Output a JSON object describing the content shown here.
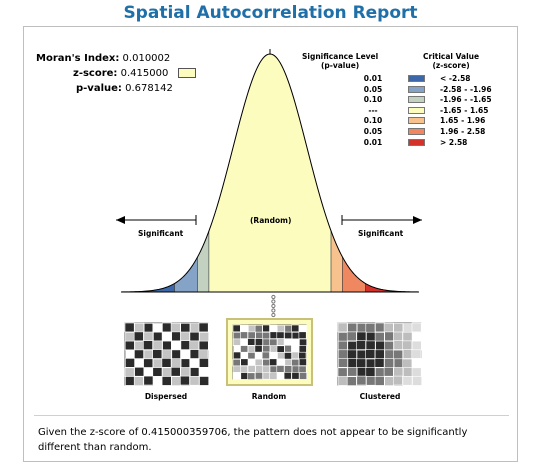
{
  "title": "Spatial Autocorrelation Report",
  "stats": {
    "morans_label": "Moran's Index:",
    "morans_value": "0.010002",
    "zscore_label": "z-score:",
    "zscore_value": "0.415000",
    "pvalue_label": "p-value:",
    "pvalue_value": "0.678142"
  },
  "legend": {
    "sig_header_1": "Significance Level",
    "sig_header_2": "(p-value)",
    "cv_header_1": "Critical Value",
    "cv_header_2": "(z-score)",
    "rows": [
      {
        "sig": "0.01",
        "cv": "< -2.58",
        "color": "#3c68aa"
      },
      {
        "sig": "0.05",
        "cv": "-2.58 - -1.96",
        "color": "#85a3c7"
      },
      {
        "sig": "0.10",
        "cv": "-1.96 - -1.65",
        "color": "#c2d1c0"
      },
      {
        "sig": "---",
        "cv": "-1.65 - 1.65",
        "color": "#fdfcbf"
      },
      {
        "sig": "0.10",
        "cv": "1.65 - 1.96",
        "color": "#f8c28e"
      },
      {
        "sig": "0.05",
        "cv": "1.96 - 2.58",
        "color": "#ef8860"
      },
      {
        "sig": "0.01",
        "cv": "> 2.58",
        "color": "#d4312b"
      }
    ]
  },
  "curve": {
    "left_label": "Significant",
    "right_label": "Significant",
    "center_label": "(Random)"
  },
  "patterns": {
    "dispersed": "Dispersed",
    "random": "Random",
    "clustered": "Clustered"
  },
  "summary": "Given the z-score of 0.415000359706, the pattern does not appear to be significantly different than random."
}
